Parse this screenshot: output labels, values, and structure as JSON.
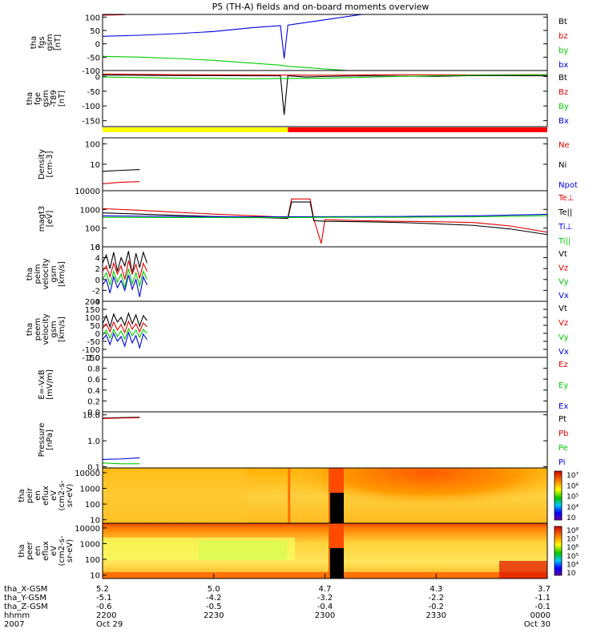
{
  "colors": {
    "black": "#000000",
    "red": "#e00000",
    "green": "#00cc00",
    "blue": "#0000dd",
    "yellow": "#ffff00",
    "bar_red": "#ff0000"
  },
  "chart_data": {
    "type": "multi-panel time series",
    "title": "P5 (TH-A) fields and on-board moments overview",
    "time_range": [
      "2007-10-29 22:00",
      "2007-10-30 00:00"
    ],
    "panels": [
      {
        "id": "fgs_gsm",
        "ylabel": [
          "tha",
          "fgs",
          "gsm",
          "[nT]"
        ],
        "ylim": [
          -100,
          110
        ],
        "yticks": [
          100,
          50,
          0,
          -50,
          -100
        ],
        "legend": [
          {
            "label": "Bt",
            "color": "black"
          },
          {
            "label": "bz",
            "color": "red"
          },
          {
            "label": "by",
            "color": "green"
          },
          {
            "label": "bx",
            "color": "blue"
          }
        ],
        "series": [
          {
            "name": "bz",
            "color": "red",
            "x": [
              0,
              6
            ],
            "y": [
              107,
              109
            ]
          },
          {
            "name": "bx",
            "color": "blue",
            "x": [
              0,
              10,
              20,
              30,
              40,
              48,
              49,
              50,
              60,
              70
            ],
            "y": [
              28,
              32,
              38,
              46,
              60,
              68,
              -55,
              70,
              90,
              110
            ]
          },
          {
            "name": "by",
            "color": "green",
            "x": [
              0,
              10,
              20,
              30,
              40,
              48,
              50,
              60,
              70
            ],
            "y": [
              -47,
              -50,
              -55,
              -62,
              -72,
              -80,
              -84,
              -94,
              -104
            ]
          }
        ]
      },
      {
        "id": "fge_t89",
        "ylabel": [
          "tha",
          "fge",
          "gsm",
          "-T89",
          "[nT]"
        ],
        "ylim": [
          -170,
          20
        ],
        "yticks": [
          0,
          -50,
          -100,
          -150
        ],
        "legend": [
          {
            "label": "Bt",
            "color": "black"
          },
          {
            "label": "Bz",
            "color": "red"
          },
          {
            "label": "By",
            "color": "green"
          },
          {
            "label": "Bx",
            "color": "blue"
          }
        ],
        "series": [
          {
            "name": "Bt",
            "color": "black",
            "x": [
              0,
              10,
              20,
              30,
              40,
              48,
              49,
              50,
              55,
              60,
              70,
              80,
              90,
              100,
              120
            ],
            "y": [
              5,
              4,
              3,
              3,
              2,
              2,
              -130,
              2,
              -2,
              0,
              2,
              1,
              0,
              3,
              2
            ]
          },
          {
            "name": "Bz",
            "color": "red",
            "x": [
              0,
              20,
              40,
              60,
              80,
              100,
              120
            ],
            "y": [
              8,
              6,
              5,
              4,
              6,
              5,
              6
            ]
          },
          {
            "name": "By",
            "color": "green",
            "x": [
              0,
              20,
              40,
              60,
              80,
              100,
              120
            ],
            "y": [
              -2,
              -6,
              -8,
              -6,
              0,
              4,
              6
            ]
          }
        ]
      },
      {
        "id": "state_bar",
        "segments": [
          {
            "x": [
              0,
              50
            ],
            "color": "yellow"
          },
          {
            "x": [
              50,
              120
            ],
            "color": "bar_red"
          }
        ]
      },
      {
        "id": "density",
        "ylabel": [
          "Density",
          "[cm-3]"
        ],
        "ylim_log": [
          0.5,
          200
        ],
        "ytick_labels": [
          "100",
          "10"
        ],
        "yticks": [
          100,
          10
        ],
        "legend": [
          {
            "label": "Ne",
            "color": "red"
          },
          {
            "label": "Ni",
            "color": "black"
          },
          {
            "label": "Npot",
            "color": "blue"
          }
        ],
        "series": [
          {
            "name": "Ni",
            "color": "black",
            "x": [
              0,
              5,
              10
            ],
            "y": [
              4.5,
              5,
              5.5
            ]
          },
          {
            "name": "Ne",
            "color": "red",
            "x": [
              0,
              5,
              10
            ],
            "y": [
              1.1,
              1.3,
              1.4
            ]
          }
        ]
      },
      {
        "id": "temperature",
        "ylabel": [
          "magt3",
          "[eV]"
        ],
        "ylim_log": [
          10,
          10000
        ],
        "ytick_labels": [
          "10000",
          "1000",
          "100",
          "10"
        ],
        "yticks": [
          10000,
          1000,
          100,
          10
        ],
        "legend": [
          {
            "label": "Te⊥",
            "color": "red"
          },
          {
            "label": "Te||",
            "color": "black"
          },
          {
            "label": "Ti⊥",
            "color": "blue"
          },
          {
            "label": "Ti||",
            "color": "green"
          }
        ],
        "series": [
          {
            "name": "Te_perp",
            "color": "red",
            "x": [
              0,
              10,
              20,
              30,
              40,
              50,
              51,
              56,
              57,
              59,
              60,
              70,
              80,
              90,
              100,
              110,
              120
            ],
            "y": [
              1100,
              900,
              700,
              560,
              460,
              380,
              3600,
              3600,
              300,
              15,
              280,
              250,
              230,
              220,
              200,
              130,
              60
            ]
          },
          {
            "name": "Te_par",
            "color": "black",
            "x": [
              0,
              10,
              20,
              30,
              40,
              50,
              51,
              56,
              57,
              60,
              70,
              80,
              90,
              100,
              110,
              120
            ],
            "y": [
              650,
              560,
              480,
              420,
              380,
              330,
              2500,
              2500,
              250,
              230,
              220,
              200,
              170,
              140,
              90,
              45
            ]
          },
          {
            "name": "Ti_perp",
            "color": "blue",
            "x": [
              0,
              20,
              40,
              60,
              80,
              100,
              120
            ],
            "y": [
              450,
              420,
              400,
              410,
              420,
              450,
              550
            ]
          },
          {
            "name": "Ti_par",
            "color": "green",
            "x": [
              0,
              20,
              40,
              60,
              80,
              100,
              120
            ],
            "y": [
              380,
              370,
              360,
              380,
              380,
              400,
              460
            ]
          }
        ]
      },
      {
        "id": "velocity_small",
        "ylabel": [
          "tha",
          "peim",
          "velocity",
          "gsm",
          "[km/s]"
        ],
        "ylim": [
          -4,
          6
        ],
        "yticks": [
          6,
          4,
          2,
          0,
          -2,
          -4
        ],
        "legend": [
          {
            "label": "Vt",
            "color": "black"
          },
          {
            "label": "Vz",
            "color": "red"
          },
          {
            "label": "Vy",
            "color": "green"
          },
          {
            "label": "Vx",
            "color": "blue"
          }
        ],
        "series": [
          {
            "name": "Vt",
            "color": "black",
            "x": [
              0,
              1,
              2,
              3,
              4,
              5,
              6,
              7,
              8,
              9,
              10,
              11,
              12
            ],
            "y": [
              3,
              4.5,
              2,
              5,
              1.5,
              4,
              2.5,
              5.2,
              1,
              4.8,
              2.2,
              5,
              3
            ]
          },
          {
            "name": "Vz",
            "color": "red",
            "x": [
              0,
              1,
              2,
              3,
              4,
              5,
              6,
              7,
              8,
              9,
              10,
              11,
              12
            ],
            "y": [
              1.5,
              2.5,
              0.5,
              3,
              1,
              2.5,
              0,
              3.5,
              1,
              2.8,
              0.2,
              3,
              1.5
            ]
          },
          {
            "name": "Vy",
            "color": "green",
            "x": [
              0,
              1,
              2,
              3,
              4,
              5,
              6,
              7,
              8,
              9,
              10,
              11,
              12
            ],
            "y": [
              0,
              1.2,
              -1,
              1.5,
              -0.5,
              1,
              -1.5,
              2,
              -0.8,
              1.2,
              -1.2,
              1.5,
              0
            ]
          },
          {
            "name": "Vx",
            "color": "blue",
            "x": [
              0,
              1,
              2,
              3,
              4,
              5,
              6,
              7,
              8,
              9,
              10,
              11,
              12
            ],
            "y": [
              -1,
              0,
              -2.5,
              0.5,
              -1.5,
              -0.2,
              -2,
              0.8,
              -1.8,
              0,
              -3.2,
              0.5,
              -1
            ]
          }
        ]
      },
      {
        "id": "velocity_large",
        "ylabel": [
          "tha",
          "peem",
          "velocity",
          "gsm",
          "[km/s]"
        ],
        "ylim": [
          -150,
          200
        ],
        "yticks": [
          200,
          150,
          100,
          50,
          0,
          -50,
          -100,
          -150
        ],
        "legend": [
          {
            "label": "Vt",
            "color": "black"
          },
          {
            "label": "Vz",
            "color": "red"
          },
          {
            "label": "Vy",
            "color": "green"
          },
          {
            "label": "Vx",
            "color": "blue"
          }
        ],
        "series": [
          {
            "name": "Vt",
            "color": "black",
            "x": [
              0,
              1,
              2,
              3,
              4,
              5,
              6,
              7,
              8,
              9,
              10,
              11,
              12
            ],
            "y": [
              60,
              110,
              40,
              120,
              70,
              100,
              50,
              125,
              60,
              115,
              45,
              110,
              80
            ]
          },
          {
            "name": "Vz",
            "color": "red",
            "x": [
              0,
              1,
              2,
              3,
              4,
              5,
              6,
              7,
              8,
              9,
              10,
              11,
              12
            ],
            "y": [
              30,
              60,
              10,
              70,
              20,
              55,
              5,
              75,
              25,
              60,
              10,
              65,
              40
            ]
          },
          {
            "name": "Vy",
            "color": "green",
            "x": [
              0,
              1,
              2,
              3,
              4,
              5,
              6,
              7,
              8,
              9,
              10,
              11,
              12
            ],
            "y": [
              -10,
              20,
              -30,
              25,
              -20,
              15,
              -35,
              30,
              -15,
              20,
              -25,
              25,
              0
            ]
          },
          {
            "name": "Vx",
            "color": "blue",
            "x": [
              0,
              1,
              2,
              3,
              4,
              5,
              6,
              7,
              8,
              9,
              10,
              11,
              12
            ],
            "y": [
              -40,
              -10,
              -70,
              0,
              -50,
              -20,
              -80,
              5,
              -60,
              -15,
              -90,
              -5,
              -40
            ]
          }
        ]
      },
      {
        "id": "efield",
        "ylabel": [
          "E=-VxB",
          "[mV/m]"
        ],
        "ylim": [
          0,
          1
        ],
        "yticks": [
          1.0,
          0.8,
          0.6,
          0.4,
          0.2,
          0.0
        ],
        "ytick_labels": [
          "1.0",
          "0.8",
          "0.6",
          "0.4",
          "0.2",
          "0.0"
        ],
        "legend": [
          {
            "label": "Ez",
            "color": "red"
          },
          {
            "label": "Ey",
            "color": "green"
          },
          {
            "label": "Ex",
            "color": "blue"
          }
        ],
        "series": []
      },
      {
        "id": "pressure",
        "ylabel": [
          "Pressure",
          "[nPa]"
        ],
        "ylim_log": [
          0.09,
          13
        ],
        "ytick_labels": [
          "10.0",
          "1.0",
          "0.1"
        ],
        "yticks": [
          10,
          1,
          0.1
        ],
        "legend": [
          {
            "label": "Pt",
            "color": "black"
          },
          {
            "label": "Pb",
            "color": "red"
          },
          {
            "label": "Pe",
            "color": "green"
          },
          {
            "label": "Pi",
            "color": "blue"
          }
        ],
        "series": [
          {
            "name": "Pt",
            "color": "black",
            "x": [
              0,
              5,
              10
            ],
            "y": [
              7.5,
              7.8,
              8
            ]
          },
          {
            "name": "Pb",
            "color": "red",
            "x": [
              0,
              5,
              10
            ],
            "y": [
              7.2,
              7.5,
              7.7
            ]
          },
          {
            "name": "Pi",
            "color": "blue",
            "x": [
              0,
              5,
              10
            ],
            "y": [
              0.19,
              0.2,
              0.22
            ]
          },
          {
            "name": "Pe",
            "color": "green",
            "x": [
              0,
              5,
              10
            ],
            "y": [
              0.14,
              0.13,
              0.13
            ]
          }
        ]
      },
      {
        "id": "peir_spectrogram",
        "type": "heatmap",
        "ylabel": [
          "tha",
          "peir",
          "en",
          "eflux",
          "eV",
          "(cm2-s-",
          "sr-eV)"
        ],
        "ytick_labels": [
          "10000",
          "1000",
          "100",
          "10"
        ],
        "colorbar_labels": [
          "10⁷",
          "10⁶",
          "10⁵",
          "10⁴",
          "10⁳"
        ]
      },
      {
        "id": "peer_spectrogram",
        "type": "heatmap",
        "ylabel": [
          "tha",
          "peer",
          "en",
          "eflux",
          "eV",
          "(cm2-s-",
          "sr-eV)"
        ],
        "ytick_labels": [
          "10000",
          "1000",
          "100",
          "10"
        ],
        "colorbar_labels": [
          "10⁸",
          "10⁷",
          "10⁶",
          "10⁵",
          "10⁴",
          "10⁳"
        ]
      }
    ],
    "x_axis": {
      "row_labels": [
        "tha_X-GSM",
        "tha_Y-GSM",
        "tha_Z-GSM",
        "hhmm",
        "2007"
      ],
      "ticks": [
        {
          "x": 0,
          "values": [
            "5.2",
            "-5.1",
            "-0.6",
            "2200",
            "Oct 29"
          ]
        },
        {
          "x": 30,
          "values": [
            "5.0",
            "-4.2",
            "-0.5",
            "2230",
            ""
          ]
        },
        {
          "x": 60,
          "values": [
            "4.7",
            "-3.2",
            "-0.4",
            "2300",
            ""
          ]
        },
        {
          "x": 90,
          "values": [
            "4.3",
            "-2.2",
            "-0.2",
            "2330",
            ""
          ]
        },
        {
          "x": 120,
          "values": [
            "3.7",
            "-1.1",
            "-0.1",
            "0000",
            "Oct 30"
          ]
        }
      ]
    }
  }
}
